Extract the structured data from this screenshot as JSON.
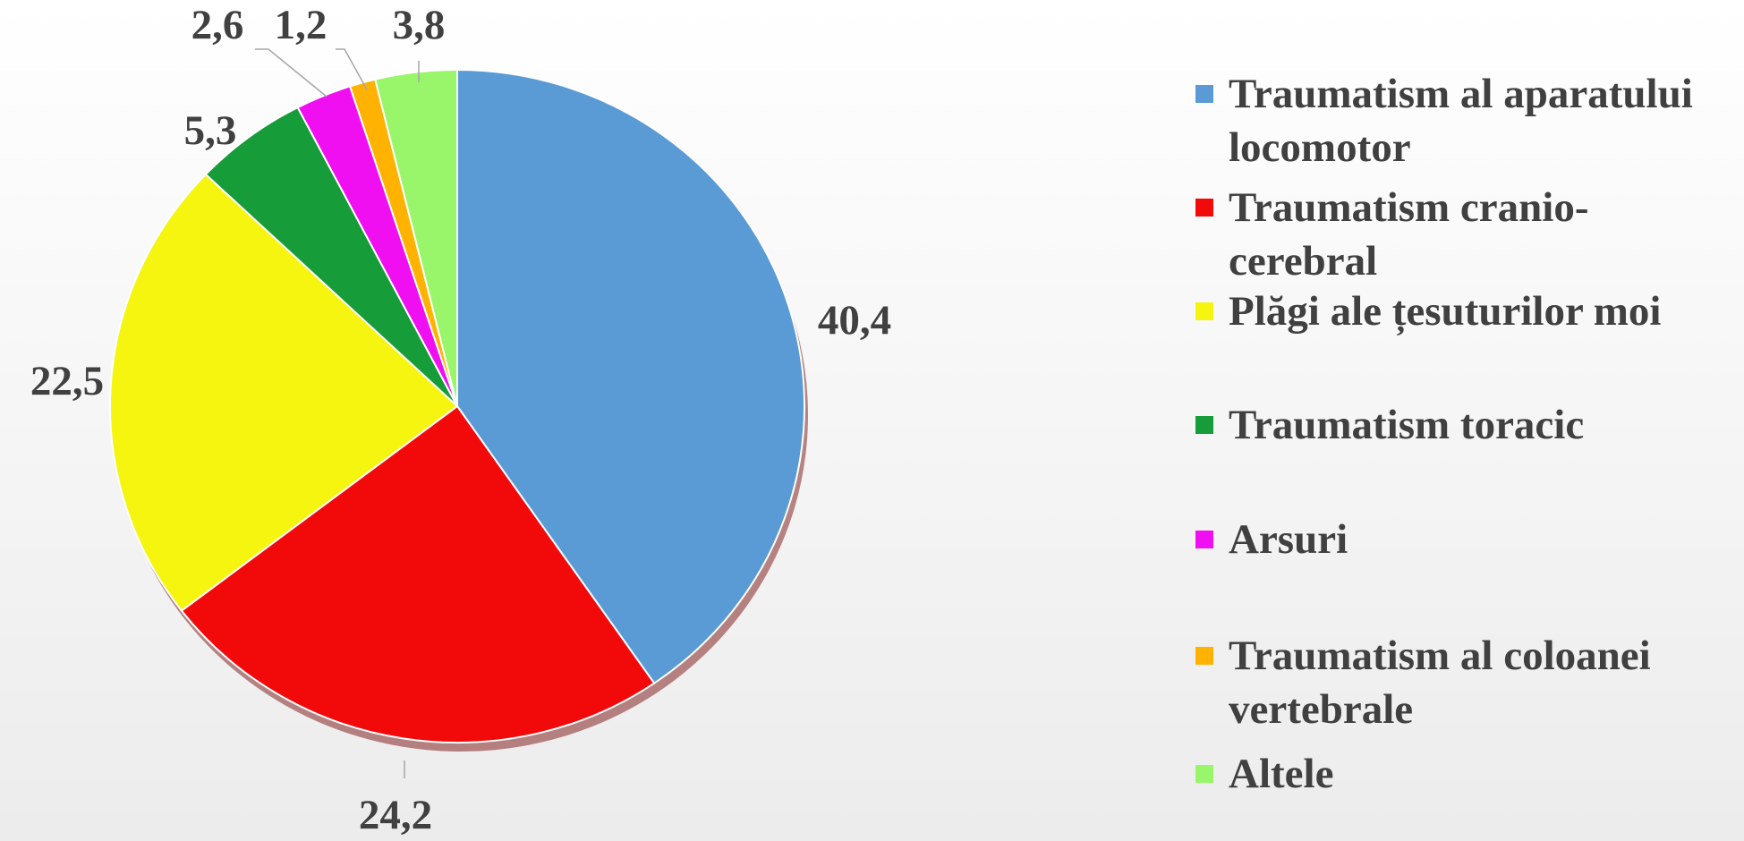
{
  "chart_data": {
    "type": "pie",
    "categories": [
      "Traumatism al aparatului locomotor",
      "Traumatism cranio-cerebral",
      "Plăgi ale țesuturilor moi",
      "Traumatism toracic",
      "Arsuri",
      "Traumatism al coloanei vertebrale",
      "Altele"
    ],
    "values": [
      40.4,
      24.2,
      22.5,
      5.3,
      2.6,
      1.2,
      3.8
    ],
    "value_labels": [
      "40,4",
      "24,2",
      "22,5",
      "5,3",
      "2,6",
      "1,2",
      "3,8"
    ],
    "colors": [
      "#5b9bd5",
      "#f20a0a",
      "#f5f50f",
      "#169c38",
      "#f00ff0",
      "#ffb300",
      "#99f56a"
    ],
    "legend": "right"
  }
}
